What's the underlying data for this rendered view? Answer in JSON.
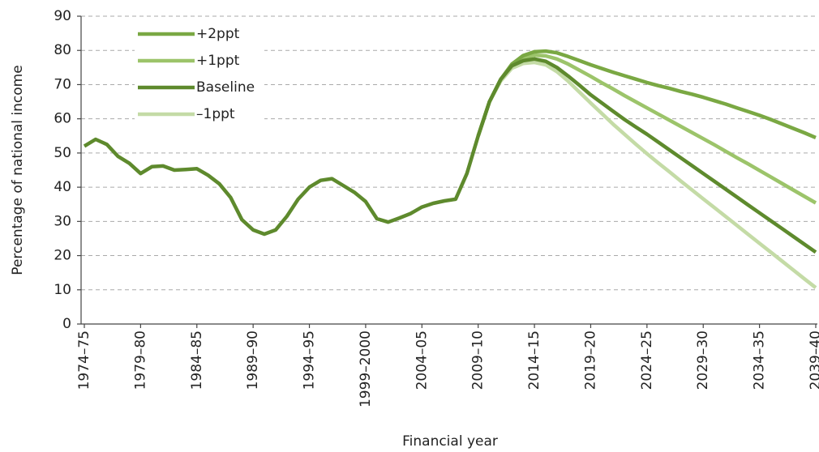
{
  "chart_data": {
    "type": "line",
    "x_label": "Financial year",
    "y_label": "Percentage of national income",
    "categories": [
      "1974–75",
      null,
      null,
      null,
      null,
      "1979–80",
      null,
      null,
      null,
      null,
      "1984–85",
      null,
      null,
      null,
      null,
      "1989–90",
      null,
      null,
      null,
      null,
      "1994–95",
      null,
      null,
      null,
      null,
      "1999–2000",
      null,
      null,
      null,
      null,
      "2004–05",
      null,
      null,
      null,
      null,
      "2009–10",
      null,
      null,
      null,
      null,
      "2014–15",
      null,
      null,
      null,
      null,
      "2019–20",
      null,
      null,
      null,
      null,
      "2024–25",
      null,
      null,
      null,
      null,
      "2029–30",
      null,
      null,
      null,
      null,
      "2034–35",
      null,
      null,
      null,
      null,
      "2039–40"
    ],
    "ylim": [
      0,
      90
    ],
    "yticks": [
      0,
      10,
      20,
      30,
      40,
      50,
      60,
      70,
      80,
      90
    ],
    "grid": true,
    "legend": "upper left",
    "series": [
      {
        "name": "+2ppt",
        "color": "#7aa843",
        "values": [
          null,
          null,
          null,
          null,
          null,
          null,
          null,
          null,
          null,
          null,
          null,
          null,
          null,
          null,
          null,
          null,
          null,
          null,
          null,
          null,
          null,
          null,
          null,
          null,
          null,
          null,
          null,
          null,
          null,
          null,
          null,
          null,
          null,
          null,
          null,
          55,
          65,
          71.5,
          76,
          78.5,
          79.6,
          79.8,
          79.3,
          78.2,
          77,
          75.8,
          74.7,
          73.6,
          72.6,
          71.6,
          70.6,
          69.7,
          68.9,
          68,
          67.2,
          66.3,
          65.3,
          64.3,
          63.2,
          62.1,
          61,
          59.8,
          58.5,
          57.2,
          55.9,
          54.5
        ]
      },
      {
        "name": "+1ppt",
        "color": "#9cc46a",
        "values": [
          null,
          null,
          null,
          null,
          null,
          null,
          null,
          null,
          null,
          null,
          null,
          null,
          null,
          null,
          null,
          null,
          null,
          null,
          null,
          null,
          null,
          null,
          null,
          null,
          null,
          null,
          null,
          null,
          null,
          null,
          null,
          null,
          null,
          null,
          null,
          55,
          65,
          71.5,
          75.8,
          77.8,
          78.6,
          78.4,
          77.5,
          76,
          74.2,
          72.4,
          70.5,
          68.7,
          66.8,
          65,
          63.2,
          61.4,
          59.6,
          57.8,
          56,
          54.2,
          52.4,
          50.5,
          48.6,
          46.8,
          44.9,
          43,
          41.1,
          39.2,
          37.3,
          35.4
        ]
      },
      {
        "name": "Baseline",
        "color": "#5e8a2d",
        "values": [
          52,
          54,
          52.5,
          49,
          47,
          44,
          46,
          46.2,
          45,
          45.2,
          45.4,
          43.5,
          41,
          37,
          30.5,
          27.5,
          26.3,
          27.5,
          31.5,
          36.5,
          40,
          42,
          42.5,
          40.5,
          38.5,
          35.8,
          30.8,
          29.8,
          31,
          32.3,
          34.2,
          35.3,
          36,
          36.5,
          44,
          55,
          65,
          71.5,
          75.5,
          77,
          77.5,
          76.8,
          75,
          72.5,
          69.8,
          67,
          64.6,
          62.2,
          59.8,
          57.6,
          55.5,
          53.2,
          50.9,
          48.6,
          46.3,
          44,
          41.7,
          39.4,
          37.1,
          34.8,
          32.5,
          30.2,
          27.9,
          25.6,
          23.3,
          21
        ]
      },
      {
        "name": "–1ppt",
        "color": "#c4dba6",
        "values": [
          null,
          null,
          null,
          null,
          null,
          null,
          null,
          null,
          null,
          null,
          null,
          null,
          null,
          null,
          null,
          null,
          null,
          null,
          null,
          null,
          null,
          null,
          null,
          null,
          null,
          null,
          null,
          null,
          null,
          null,
          null,
          null,
          null,
          null,
          null,
          55,
          65,
          71,
          74.8,
          76.2,
          76.5,
          75.8,
          73.8,
          71,
          67.8,
          64.6,
          61.5,
          58.4,
          55.5,
          52.6,
          49.8,
          47.1,
          44.5,
          41.8,
          39.2,
          36.6,
          34,
          31.4,
          28.8,
          26.2,
          23.6,
          21,
          18.4,
          15.8,
          13.2,
          10.6
        ]
      }
    ]
  }
}
